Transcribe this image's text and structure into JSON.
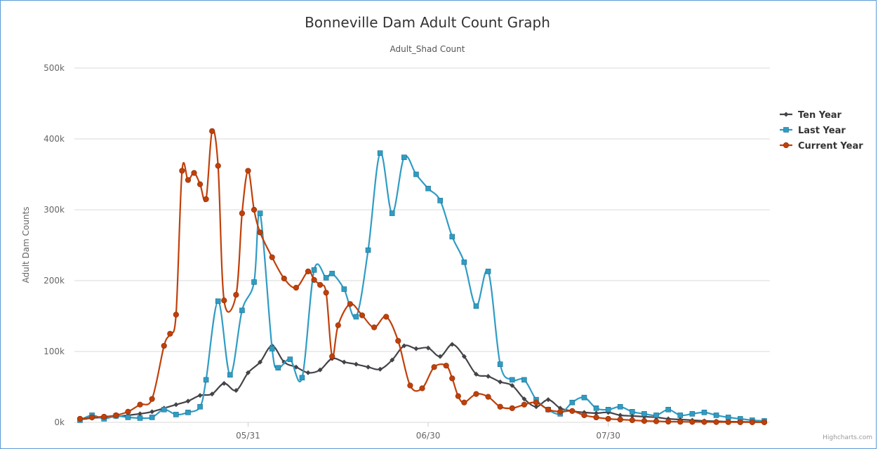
{
  "chart_data": {
    "type": "line",
    "title": "Bonneville Dam Adult Count Graph",
    "subtitle": "Adult_Shad Count",
    "xlabel": "",
    "ylabel": "Adult Dam Counts",
    "x_tick_labels": [
      "05/31",
      "06/30",
      "07/30"
    ],
    "y_tick_labels": [
      "0k",
      "100k",
      "200k",
      "300k",
      "400k",
      "500k"
    ],
    "ylim": [
      0,
      500000
    ],
    "grid": true,
    "legend_position": "right",
    "credits": "Highcharts.com",
    "series": [
      {
        "name": "Ten Year",
        "color": "#434348",
        "marker": "diamond",
        "x": [
          1,
          3,
          5,
          7,
          9,
          11,
          13,
          15,
          17,
          19,
          21,
          23,
          25,
          27,
          29,
          31,
          33,
          35,
          37,
          39,
          41,
          43,
          45,
          47,
          49,
          51,
          53,
          55,
          57,
          59,
          61,
          63,
          65,
          67,
          69,
          71,
          73,
          75,
          77,
          79,
          81,
          83,
          85,
          87,
          89,
          91,
          93,
          95,
          97,
          99,
          101,
          103,
          105,
          107,
          109,
          111,
          113,
          115
        ],
        "values": [
          4000,
          6000,
          7000,
          8000,
          10000,
          12000,
          15000,
          20000,
          25000,
          30000,
          38000,
          40000,
          55000,
          45000,
          70000,
          85000,
          108000,
          85000,
          78000,
          70000,
          74000,
          90000,
          85000,
          82000,
          78000,
          75000,
          88000,
          108000,
          104000,
          105000,
          93000,
          110000,
          93000,
          68000,
          65000,
          57000,
          52000,
          33000,
          22000,
          32000,
          20000,
          16000,
          14000,
          13000,
          14000,
          10000,
          9000,
          8000,
          7000,
          5000,
          4000,
          3000,
          2000,
          1500,
          1000,
          800,
          500,
          300
        ]
      },
      {
        "name": "Last Year",
        "color": "#2f9cc4",
        "marker": "square",
        "x": [
          1,
          3,
          5,
          7,
          9,
          11,
          13,
          15,
          17,
          19,
          21,
          22,
          24,
          26,
          28,
          30,
          31,
          33,
          34,
          36,
          38,
          40,
          42,
          43,
          45,
          47,
          49,
          51,
          53,
          55,
          57,
          59,
          61,
          63,
          65,
          67,
          69,
          71,
          73,
          75,
          77,
          79,
          81,
          83,
          85,
          87,
          89,
          91,
          93,
          95,
          97,
          99,
          101,
          103,
          105,
          107,
          109,
          111,
          113,
          115
        ],
        "values": [
          3000,
          10000,
          5000,
          9000,
          7000,
          6000,
          7000,
          18000,
          11000,
          14000,
          22000,
          60000,
          171000,
          67000,
          158000,
          198000,
          295000,
          104000,
          77000,
          89000,
          63000,
          215000,
          204000,
          210000,
          188000,
          149000,
          243000,
          380000,
          295000,
          374000,
          350000,
          330000,
          313000,
          262000,
          226000,
          164000,
          213000,
          82000,
          60000,
          60000,
          32000,
          18000,
          12000,
          28000,
          35000,
          20000,
          18000,
          22000,
          15000,
          12000,
          10000,
          18000,
          10000,
          12000,
          14000,
          10000,
          7000,
          5000,
          3000,
          2000
        ]
      },
      {
        "name": "Current Year",
        "color": "#c0400a",
        "marker": "circle",
        "x": [
          1,
          3,
          5,
          7,
          9,
          11,
          13,
          15,
          16,
          17,
          18,
          19,
          20,
          21,
          22,
          23,
          24,
          25,
          27,
          28,
          29,
          30,
          31,
          33,
          35,
          37,
          39,
          40,
          41,
          42,
          43,
          44,
          46,
          48,
          50,
          52,
          54,
          56,
          58,
          60,
          62,
          63,
          64,
          65,
          67,
          69,
          71,
          73,
          75,
          77,
          79,
          81,
          83,
          85,
          87,
          89,
          91,
          93,
          95,
          97,
          99,
          101,
          103,
          105,
          107,
          109,
          111,
          113,
          115
        ],
        "values": [
          5000,
          7000,
          8000,
          10000,
          15000,
          25000,
          33000,
          108000,
          125000,
          152000,
          355000,
          342000,
          352000,
          336000,
          315000,
          411000,
          362000,
          172000,
          180000,
          295000,
          355000,
          300000,
          268000,
          233000,
          203000,
          190000,
          213000,
          201000,
          194000,
          183000,
          93000,
          137000,
          167000,
          151000,
          134000,
          149000,
          115000,
          52000,
          48000,
          78000,
          80000,
          62000,
          37000,
          28000,
          40000,
          36000,
          22000,
          20000,
          25000,
          28000,
          18000,
          15000,
          16000,
          10000,
          7000,
          5000,
          4000,
          3000,
          2000,
          1500,
          1000,
          800,
          600,
          500,
          400,
          300,
          200,
          150,
          100
        ]
      }
    ]
  }
}
